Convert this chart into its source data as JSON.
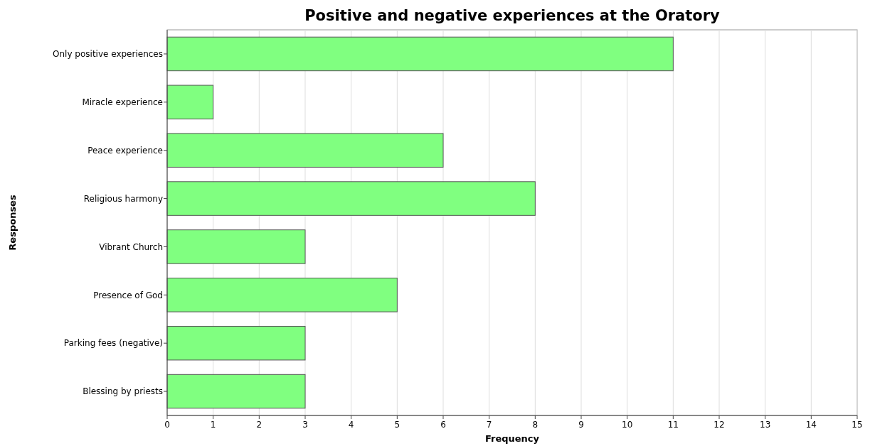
{
  "chart_data": {
    "type": "bar",
    "orientation": "horizontal",
    "title": "Positive and negative experiences at the Oratory",
    "xlabel": "Frequency",
    "ylabel": "Responses",
    "categories": [
      "Only positive experiences",
      "Miracle experience",
      "Peace experience",
      "Religious harmony",
      "Vibrant Church",
      "Presence of God",
      "Parking fees (negative)",
      "Blessing by priests"
    ],
    "values": [
      11,
      1,
      6,
      8,
      3,
      5,
      3,
      3
    ],
    "color": "#80ff80",
    "xlim": [
      0,
      15
    ],
    "xticks": [
      0,
      1,
      2,
      3,
      4,
      5,
      6,
      7,
      8,
      9,
      10,
      11,
      12,
      13,
      14,
      15
    ],
    "grid": "x"
  }
}
